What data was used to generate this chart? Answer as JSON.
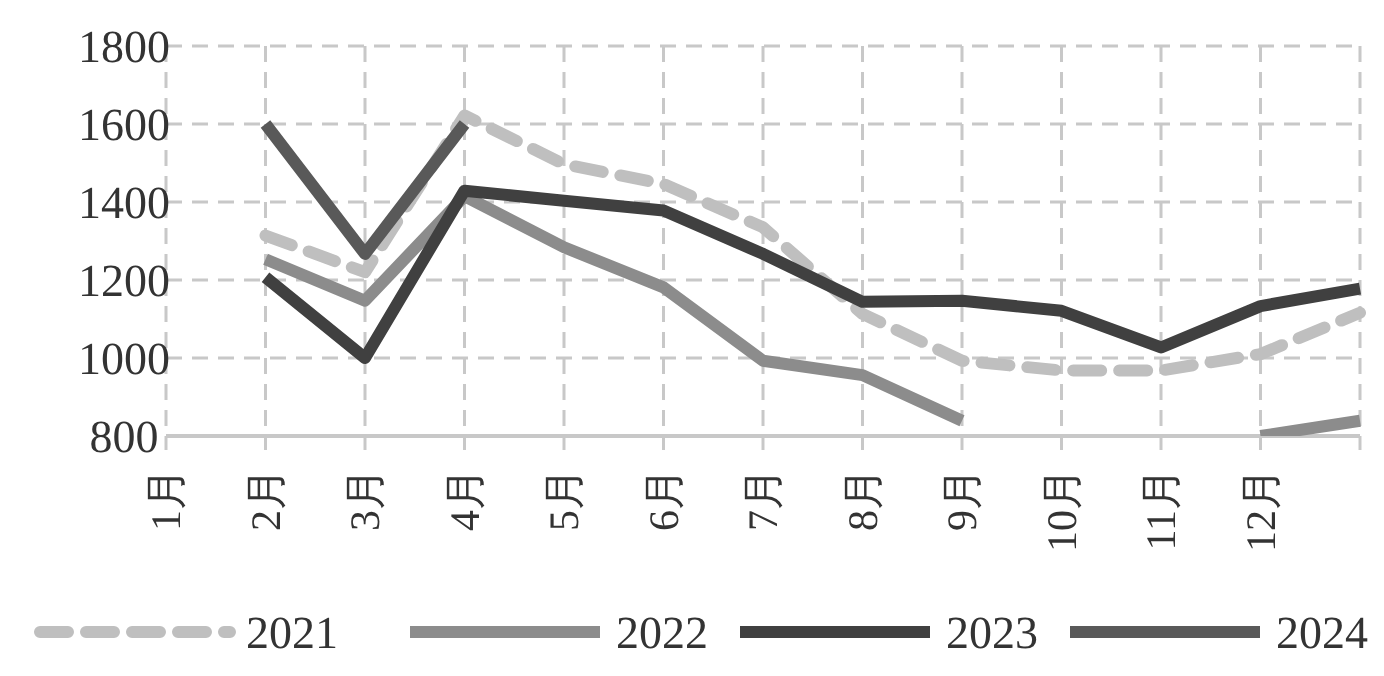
{
  "chart_data": {
    "type": "line",
    "categories": [
      "1月",
      "2月",
      "3月",
      "4月",
      "5月",
      "6月",
      "7月",
      "8月",
      "9月",
      "10月",
      "11月",
      "12月",
      null
    ],
    "series": [
      {
        "name": "2021",
        "color": "#bfbfbf",
        "line_style": "dashed",
        "values": [
          null,
          1314,
          1220,
          1622,
          1497,
          1446,
          1335,
          1113,
          993,
          968,
          968,
          1010,
          1116
        ]
      },
      {
        "name": "2022",
        "color": "#8c8c8c",
        "values": [
          null,
          1253,
          1147,
          1415,
          1284,
          1181,
          993,
          956,
          839,
          null,
          null,
          800,
          839
        ]
      },
      {
        "name": "2023",
        "color": "#404040",
        "values": [
          null,
          1207,
          1000,
          1429,
          1403,
          1378,
          1267,
          1144,
          1147,
          1121,
          1027,
          1133,
          1178
        ]
      },
      {
        "name": "2024",
        "color": "#595959",
        "values": [
          null,
          1600,
          1267,
          1600,
          null,
          null,
          null,
          null,
          null,
          null,
          null,
          null,
          null
        ]
      }
    ],
    "ylim": [
      800,
      1800
    ],
    "yticks": [
      800,
      1000,
      1200,
      1400,
      1600,
      1800
    ],
    "grid": true,
    "legend": "bottom",
    "marker": "none",
    "line_style": "solid"
  }
}
